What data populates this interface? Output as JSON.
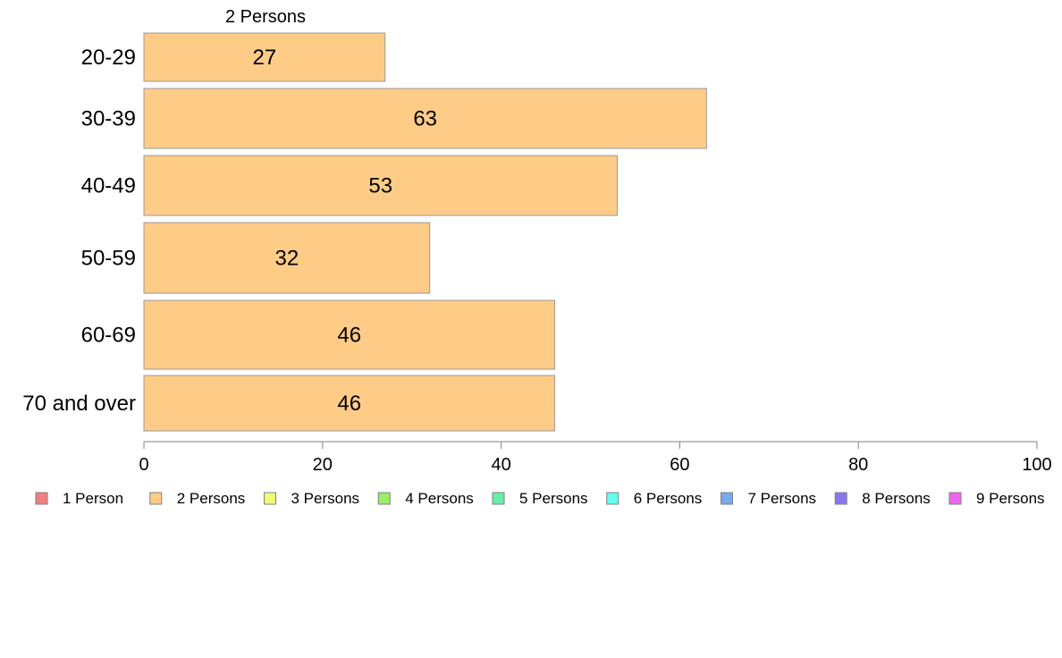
{
  "chart_data": {
    "type": "bar",
    "orientation": "horizontal",
    "title": "",
    "xlabel": "",
    "ylabel": "",
    "series_title": "2 Persons",
    "categories": [
      "20-29",
      "30-39",
      "40-49",
      "50-59",
      "60-69",
      "70 and over"
    ],
    "series": [
      {
        "name": "2 Persons",
        "values": [
          27,
          63,
          53,
          32,
          46,
          46
        ],
        "color": "#FFCC88"
      }
    ],
    "xlim": [
      0,
      100
    ],
    "xticks": [
      "0",
      "20",
      "40",
      "60",
      "80",
      "100"
    ],
    "grid": false,
    "legend_position": "bottom",
    "legend": [
      {
        "label": "1 Person",
        "color": "#F08080"
      },
      {
        "label": "2 Persons",
        "color": "#FFCC88"
      },
      {
        "label": "3 Persons",
        "color": "#EEFF77"
      },
      {
        "label": "4 Persons",
        "color": "#99EE66"
      },
      {
        "label": "5 Persons",
        "color": "#66EEAA"
      },
      {
        "label": "6 Persons",
        "color": "#66FFEE"
      },
      {
        "label": "7 Persons",
        "color": "#77AAEE"
      },
      {
        "label": "8 Persons",
        "color": "#8877EE"
      },
      {
        "label": "9 Persons",
        "color": "#EE66EE"
      }
    ]
  }
}
